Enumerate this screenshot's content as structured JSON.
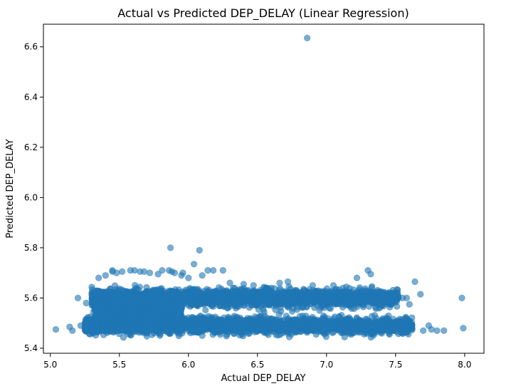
{
  "chart_data": {
    "type": "scatter",
    "title": "Actual vs Predicted DEP_DELAY (Linear Regression)",
    "xlabel": "Actual DEP_DELAY",
    "ylabel": "Predicted DEP_DELAY",
    "xlim": [
      4.95,
      8.14
    ],
    "ylim": [
      5.38,
      6.69
    ],
    "xticks": [
      5.0,
      5.5,
      6.0,
      6.5,
      7.0,
      7.5,
      8.0
    ],
    "xtick_labels": [
      "5.0",
      "5.5",
      "6.0",
      "6.5",
      "7.0",
      "7.5",
      "8.0"
    ],
    "yticks": [
      5.4,
      5.6,
      5.8,
      6.0,
      6.2,
      6.4,
      6.6
    ],
    "ytick_labels": [
      "5.4",
      "5.6",
      "5.8",
      "6.0",
      "6.2",
      "6.4",
      "6.6"
    ],
    "grid": false,
    "marker_color": "#1f77b4",
    "marker_alpha": 0.6,
    "series": [
      {
        "x": [
          6.86,
          5.87,
          6.08,
          6.04,
          5.45,
          5.81,
          5.86,
          5.88,
          5.45,
          5.52,
          5.58,
          5.61,
          5.65,
          5.68,
          5.9,
          5.96,
          6.14,
          6.18,
          6.25,
          7.3,
          7.32,
          7.22,
          7.64,
          7.68,
          7.58,
          7.98,
          7.99,
          7.85,
          7.8,
          7.7,
          7.62,
          7.55,
          5.04,
          5.14,
          5.16,
          5.2,
          5.22,
          5.26,
          5.3,
          6.72,
          6.66,
          6.4,
          6.1,
          7.05,
          7.12,
          7.28,
          7.4,
          7.48,
          7.52,
          7.6,
          7.74,
          7.76,
          6.9,
          6.6,
          6.3,
          5.72,
          5.78,
          5.35,
          5.4,
          5.48,
          7.02,
          6.95,
          5.95,
          6.0
        ],
        "y": [
          6.635,
          5.8,
          5.79,
          5.735,
          5.71,
          5.71,
          5.71,
          5.705,
          5.705,
          5.705,
          5.71,
          5.71,
          5.705,
          5.705,
          5.7,
          5.7,
          5.71,
          5.71,
          5.71,
          5.71,
          5.695,
          5.68,
          5.665,
          5.615,
          5.6,
          5.6,
          5.48,
          5.47,
          5.47,
          5.47,
          5.48,
          5.6,
          5.475,
          5.485,
          5.47,
          5.6,
          5.49,
          5.58,
          5.62,
          5.665,
          5.66,
          5.655,
          5.69,
          5.65,
          5.64,
          5.63,
          5.62,
          5.61,
          5.6,
          5.575,
          5.49,
          5.475,
          5.65,
          5.64,
          5.66,
          5.7,
          5.695,
          5.68,
          5.69,
          5.7,
          5.56,
          5.55,
          5.69,
          5.68
        ]
      }
    ],
    "clusters": [
      {
        "x_min": 5.3,
        "x_max": 7.52,
        "y_center": 5.6,
        "y_spread": 0.032,
        "count": 2600
      },
      {
        "x_min": 5.25,
        "x_max": 7.62,
        "y_center": 5.49,
        "y_spread": 0.03,
        "count": 2600
      },
      {
        "x_min": 5.32,
        "x_max": 5.95,
        "y_center": 5.55,
        "y_spread": 0.09,
        "count": 2200
      }
    ]
  }
}
